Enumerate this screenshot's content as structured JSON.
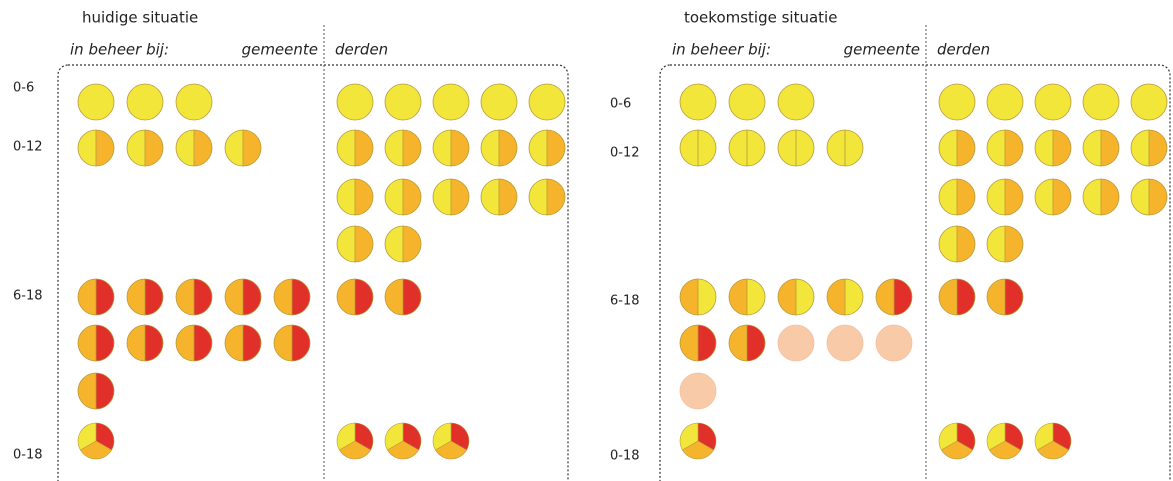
{
  "panels": [
    {
      "title": "huidige situatie",
      "subtitle": "in beheer bij:",
      "group_left": "gemeente",
      "group_right": "derden",
      "row_labels": [
        "0-6",
        "0-12",
        "6-18",
        "0-18"
      ]
    },
    {
      "title": "toekomstige situatie",
      "subtitle": "in beheer bij:",
      "group_left": "gemeente",
      "group_right": "derden",
      "row_labels": [
        "0-6",
        "0-12",
        "6-18",
        "0-18"
      ]
    }
  ]
}
